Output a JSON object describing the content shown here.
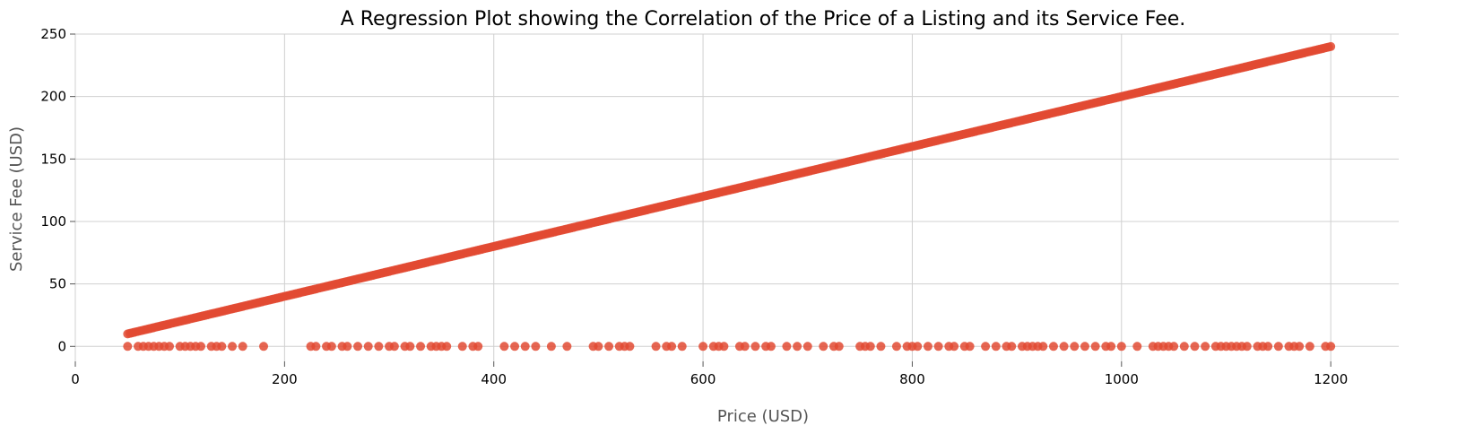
{
  "chart_data": {
    "type": "scatter",
    "title": "A Regression Plot showing the Correlation of the Price of a Listing and its Service Fee.",
    "xlabel": "Price (USD)",
    "ylabel": "Service Fee (USD)",
    "xlim": [
      0,
      1265
    ],
    "ylim": [
      -12,
      250
    ],
    "xticks": [
      0,
      200,
      400,
      600,
      800,
      1000,
      1200
    ],
    "yticks": [
      0,
      50,
      100,
      150,
      200,
      250
    ],
    "grid": true,
    "legend": "none",
    "color": "#e24a33",
    "series": [
      {
        "relation": "service_fee = 0.2 * price",
        "x_range": [
          50,
          1200
        ],
        "x_step": 2
      },
      {
        "y": 0,
        "x": [
          50,
          60,
          65,
          70,
          75,
          80,
          85,
          90,
          100,
          105,
          110,
          115,
          120,
          130,
          135,
          140,
          150,
          160,
          180,
          225,
          230,
          240,
          245,
          255,
          260,
          270,
          280,
          290,
          300,
          305,
          315,
          320,
          330,
          340,
          345,
          350,
          355,
          370,
          380,
          385,
          410,
          420,
          430,
          440,
          455,
          470,
          495,
          500,
          510,
          520,
          525,
          530,
          555,
          565,
          570,
          580,
          600,
          610,
          615,
          620,
          635,
          640,
          650,
          660,
          665,
          680,
          690,
          700,
          715,
          725,
          730,
          750,
          755,
          760,
          770,
          785,
          795,
          800,
          805,
          815,
          825,
          835,
          840,
          850,
          855,
          870,
          880,
          890,
          895,
          905,
          910,
          915,
          920,
          925,
          935,
          945,
          955,
          965,
          975,
          985,
          990,
          1000,
          1015,
          1030,
          1035,
          1040,
          1045,
          1050,
          1060,
          1070,
          1080,
          1090,
          1095,
          1100,
          1105,
          1110,
          1115,
          1120,
          1130,
          1135,
          1140,
          1150,
          1160,
          1165,
          1170,
          1180,
          1195,
          1200
        ]
      }
    ]
  }
}
